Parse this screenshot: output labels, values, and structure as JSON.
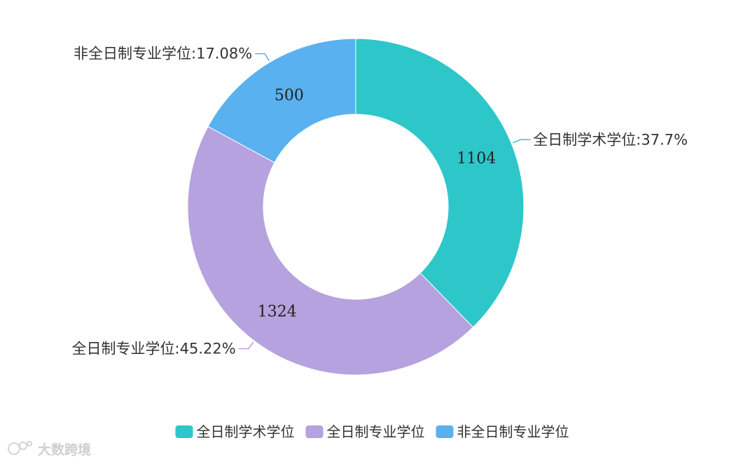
{
  "chart_data": {
    "type": "pie",
    "donut": true,
    "start_angle_deg": 0,
    "slices": [
      {
        "name": "全日制学术学位",
        "value": 1104,
        "percent_label": "37.7%",
        "color": "#2ec7c9"
      },
      {
        "name": "全日制专业学位",
        "value": 1324,
        "percent_label": "45.22%",
        "color": "#b6a2de"
      },
      {
        "name": "非全日制专业学位",
        "value": 500,
        "percent_label": "17.08%",
        "color": "#5ab1ef"
      }
    ],
    "legend_position": "bottom-center"
  },
  "watermark": {
    "text": "大数跨境",
    "icon": "watermark-logo-icon"
  }
}
